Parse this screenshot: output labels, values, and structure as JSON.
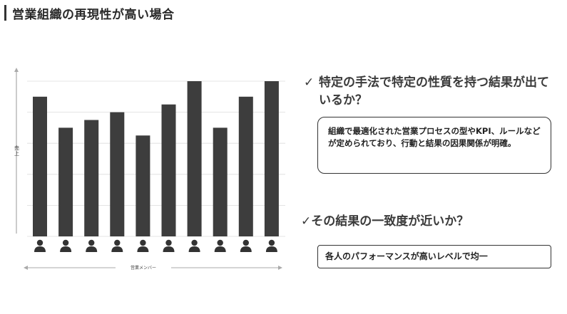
{
  "slide": {
    "title": "営業組織の再現性が高い場合"
  },
  "chart_data": {
    "type": "bar",
    "ylabel": "売上",
    "xlabel": "営業メンバー",
    "categories": [
      "",
      "",
      "",
      "",
      "",
      "",
      "",
      "",
      "",
      ""
    ],
    "values": [
      9,
      7,
      7.5,
      8,
      6.5,
      8.5,
      10,
      7,
      9,
      10
    ],
    "ylim": [
      0,
      10
    ],
    "grid": true,
    "legend": "none",
    "bar_color": "#3d3d3d",
    "category_icon": "person-icon"
  },
  "points": [
    {
      "check": "✓",
      "text": "特定の手法で特定の性質を持つ結果が出ているか？",
      "detail": "組織で最適化された営業プロセスの型やKPI、ルールなどが定められており、行動と結果の因果関係が明確。"
    },
    {
      "check": "✓",
      "text": "その結果の一致度が近いか？",
      "detail": "各人のパフォーマンスが高いレベルで均一"
    }
  ],
  "colors": {
    "text": "#333333",
    "bar": "#3d3d3d",
    "grid": "#dcdcdc",
    "axis": "#aaaaaa"
  }
}
